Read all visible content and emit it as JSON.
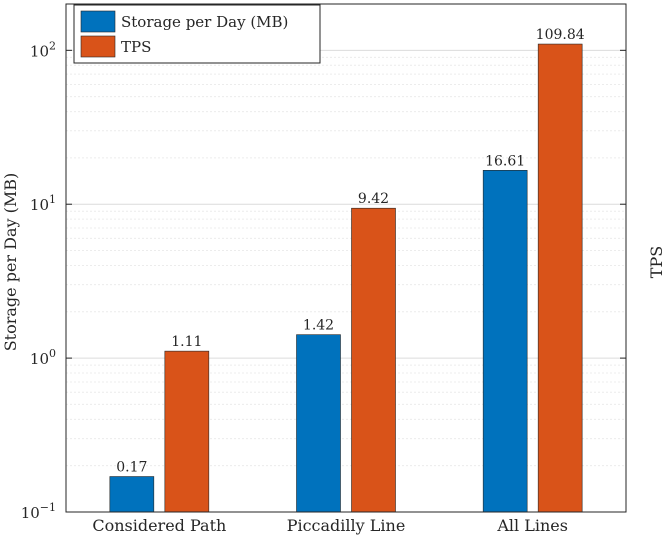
{
  "chart_data": {
    "type": "bar",
    "categories": [
      "Considered Path",
      "Piccadilly Line",
      "All Lines"
    ],
    "series": [
      {
        "name": "Storage per Day (MB)",
        "values": [
          0.17,
          1.42,
          16.61
        ],
        "labels": [
          "0.17",
          "1.42",
          "16.61"
        ],
        "color": "#0072BD"
      },
      {
        "name": "TPS",
        "values": [
          1.11,
          9.42,
          109.84
        ],
        "labels": [
          "1.11",
          "9.42",
          "109.84"
        ],
        "color": "#D95319"
      }
    ],
    "ylabel_left": "Storage per Day (MB)",
    "ylabel_right": "TPS",
    "yscale": "log",
    "ylim": [
      0.1,
      200
    ],
    "yticks": [
      {
        "value": 0.1,
        "base": "10",
        "exp": "−1"
      },
      {
        "value": 1,
        "base": "10",
        "exp": "0"
      },
      {
        "value": 10,
        "base": "10",
        "exp": "1"
      },
      {
        "value": 100,
        "base": "10",
        "exp": "2"
      }
    ],
    "grid": true,
    "legend_position": "top-left"
  }
}
